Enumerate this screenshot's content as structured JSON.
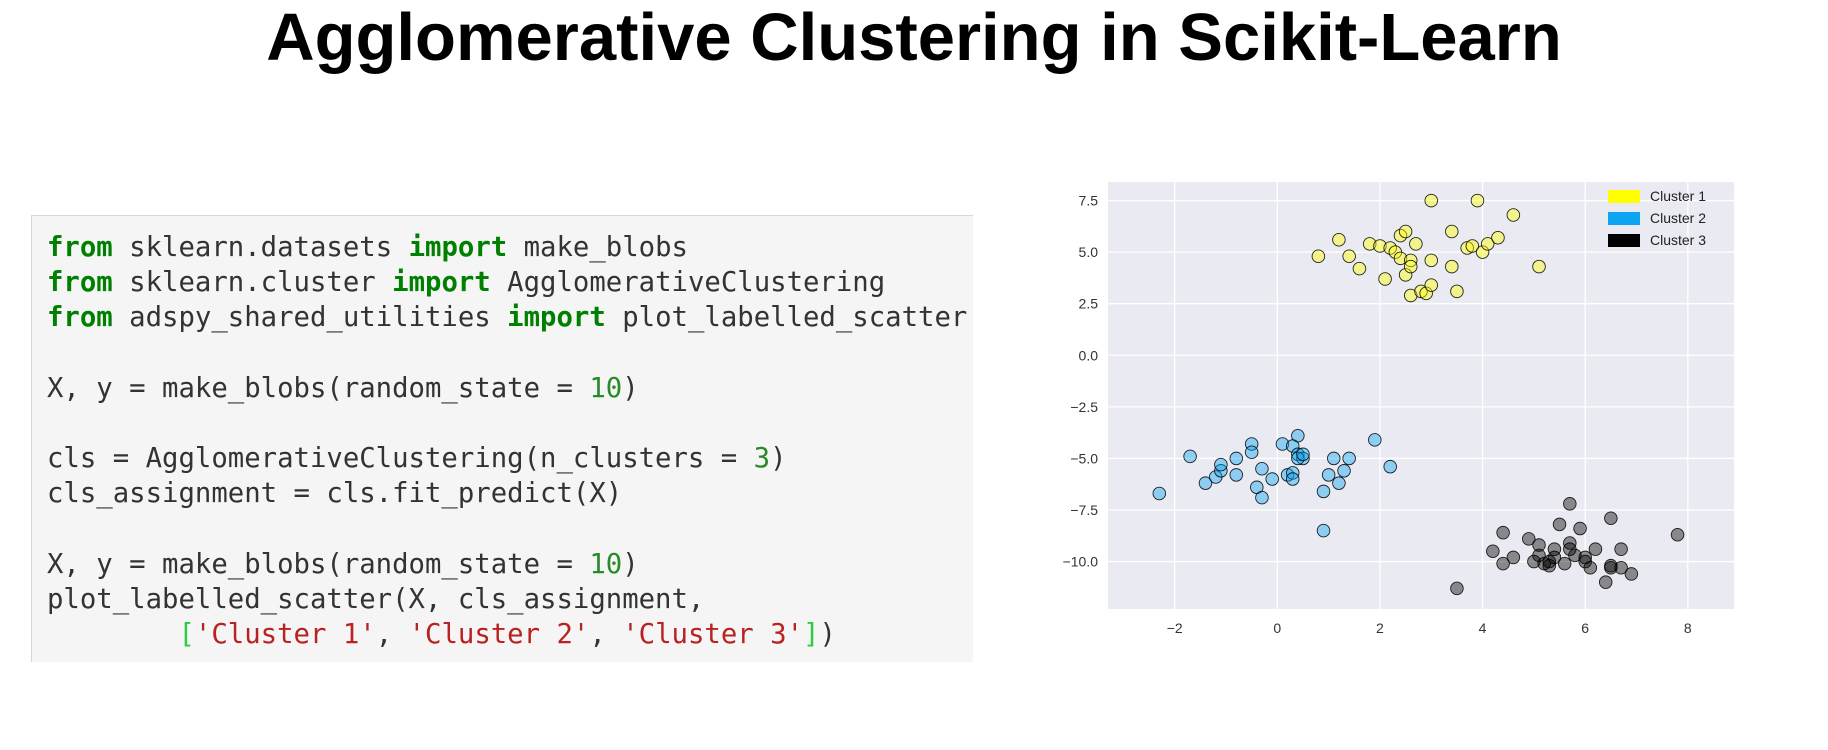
{
  "title": "Agglomerative Clustering in Scikit-Learn",
  "code_lines": [
    [
      {
        "t": "from",
        "c": "keyword"
      },
      {
        "t": " sklearn.datasets ",
        "c": "plain"
      },
      {
        "t": "import",
        "c": "keyword"
      },
      {
        "t": " make_blobs",
        "c": "plain"
      }
    ],
    [
      {
        "t": "from",
        "c": "keyword"
      },
      {
        "t": " sklearn.cluster ",
        "c": "plain"
      },
      {
        "t": "import",
        "c": "keyword"
      },
      {
        "t": " AgglomerativeClustering",
        "c": "plain"
      }
    ],
    [
      {
        "t": "from",
        "c": "keyword"
      },
      {
        "t": " adspy_shared_utilities ",
        "c": "plain"
      },
      {
        "t": "import",
        "c": "keyword"
      },
      {
        "t": " plot_labelled_scatter",
        "c": "plain"
      }
    ],
    [],
    [
      {
        "t": "X, y = make_blobs(random_state = ",
        "c": "plain"
      },
      {
        "t": "10",
        "c": "number"
      },
      {
        "t": ")",
        "c": "plain"
      }
    ],
    [],
    [
      {
        "t": "cls = AgglomerativeClustering(n_clusters = ",
        "c": "plain"
      },
      {
        "t": "3",
        "c": "number"
      },
      {
        "t": ")",
        "c": "plain"
      }
    ],
    [
      {
        "t": "cls_assignment = cls.fit_predict(X)",
        "c": "plain"
      }
    ],
    [],
    [
      {
        "t": "X, y = make_blobs(random_state = ",
        "c": "plain"
      },
      {
        "t": "10",
        "c": "number"
      },
      {
        "t": ")",
        "c": "plain"
      }
    ],
    [
      {
        "t": "plot_labelled_scatter(X, cls_assignment,",
        "c": "plain"
      }
    ],
    [
      {
        "t": "        ",
        "c": "plain"
      },
      {
        "t": "[",
        "c": "bracket"
      },
      {
        "t": "'Cluster 1'",
        "c": "string"
      },
      {
        "t": ", ",
        "c": "plain"
      },
      {
        "t": "'Cluster 2'",
        "c": "string"
      },
      {
        "t": ", ",
        "c": "plain"
      },
      {
        "t": "'Cluster 3'",
        "c": "string"
      },
      {
        "t": "]",
        "c": "bracket"
      },
      {
        "t": ")",
        "c": "plain"
      }
    ]
  ],
  "chart_data": {
    "type": "scatter",
    "xlim": [
      -3.3,
      8.9
    ],
    "ylim": [
      -12.3,
      8.4
    ],
    "xticks": [
      -2,
      0,
      2,
      4,
      6,
      8
    ],
    "xtick_labels": [
      "−2",
      "0",
      "2",
      "4",
      "6",
      "8"
    ],
    "yticks": [
      7.5,
      5.0,
      2.5,
      0.0,
      -2.5,
      -5.0,
      -7.5,
      -10.0
    ],
    "ytick_labels": [
      "7.5",
      "5.0",
      "2.5",
      "0.0",
      "−2.5",
      "−5.0",
      "−7.5",
      "−10.0"
    ],
    "grid": true,
    "legend_position": "top-right",
    "series": [
      {
        "name": "Cluster 1",
        "color": "#ffff00",
        "points": [
          [
            0.8,
            4.8
          ],
          [
            1.2,
            5.6
          ],
          [
            1.4,
            4.8
          ],
          [
            1.6,
            4.2
          ],
          [
            1.8,
            5.4
          ],
          [
            2.0,
            5.3
          ],
          [
            2.1,
            3.7
          ],
          [
            2.2,
            5.2
          ],
          [
            2.3,
            5.0
          ],
          [
            2.4,
            5.8
          ],
          [
            2.4,
            4.7
          ],
          [
            2.5,
            6.0
          ],
          [
            2.5,
            3.9
          ],
          [
            2.6,
            4.6
          ],
          [
            2.6,
            4.3
          ],
          [
            2.7,
            5.4
          ],
          [
            2.6,
            2.9
          ],
          [
            2.8,
            3.1
          ],
          [
            2.9,
            3.0
          ],
          [
            3.0,
            3.4
          ],
          [
            3.0,
            4.6
          ],
          [
            3.0,
            7.5
          ],
          [
            3.5,
            3.1
          ],
          [
            3.4,
            4.3
          ],
          [
            3.4,
            6.0
          ],
          [
            3.7,
            5.2
          ],
          [
            3.8,
            5.3
          ],
          [
            3.9,
            7.5
          ],
          [
            4.0,
            5.0
          ],
          [
            4.1,
            5.4
          ],
          [
            4.3,
            5.7
          ],
          [
            4.6,
            6.8
          ],
          [
            5.1,
            4.3
          ]
        ]
      },
      {
        "name": "Cluster 2",
        "color": "#0da5f2",
        "points": [
          [
            -2.3,
            -6.7
          ],
          [
            -1.7,
            -4.9
          ],
          [
            -1.4,
            -6.2
          ],
          [
            -1.2,
            -5.9
          ],
          [
            -1.1,
            -5.6
          ],
          [
            -1.1,
            -5.3
          ],
          [
            -0.8,
            -5.8
          ],
          [
            -0.8,
            -5.0
          ],
          [
            -0.5,
            -4.3
          ],
          [
            -0.5,
            -4.7
          ],
          [
            -0.4,
            -6.4
          ],
          [
            -0.3,
            -5.5
          ],
          [
            -0.3,
            -6.9
          ],
          [
            -0.1,
            -6.0
          ],
          [
            0.1,
            -4.3
          ],
          [
            0.2,
            -5.8
          ],
          [
            0.3,
            -5.7
          ],
          [
            0.3,
            -6.0
          ],
          [
            0.4,
            -3.9
          ],
          [
            0.3,
            -4.4
          ],
          [
            0.4,
            -4.8
          ],
          [
            0.5,
            -5.0
          ],
          [
            0.4,
            -5.0
          ],
          [
            0.5,
            -4.8
          ],
          [
            0.9,
            -6.6
          ],
          [
            1.0,
            -5.8
          ],
          [
            1.1,
            -5.0
          ],
          [
            1.2,
            -6.2
          ],
          [
            1.3,
            -5.6
          ],
          [
            1.4,
            -5.0
          ],
          [
            0.9,
            -8.5
          ],
          [
            1.9,
            -4.1
          ],
          [
            2.2,
            -5.4
          ]
        ]
      },
      {
        "name": "Cluster 3",
        "color": "#000000",
        "points": [
          [
            3.5,
            -11.3
          ],
          [
            4.2,
            -9.5
          ],
          [
            4.4,
            -8.6
          ],
          [
            4.4,
            -10.1
          ],
          [
            4.6,
            -9.8
          ],
          [
            4.9,
            -8.9
          ],
          [
            5.1,
            -9.2
          ],
          [
            5.1,
            -9.7
          ],
          [
            5.2,
            -10.1
          ],
          [
            5.3,
            -10.2
          ],
          [
            5.3,
            -10.0
          ],
          [
            5.4,
            -9.8
          ],
          [
            5.4,
            -9.4
          ],
          [
            5.5,
            -8.2
          ],
          [
            5.6,
            -10.1
          ],
          [
            5.7,
            -9.1
          ],
          [
            5.7,
            -9.4
          ],
          [
            5.7,
            -7.2
          ],
          [
            5.8,
            -9.7
          ],
          [
            5.9,
            -8.4
          ],
          [
            6.0,
            -9.8
          ],
          [
            6.0,
            -10.0
          ],
          [
            6.1,
            -10.3
          ],
          [
            6.2,
            -9.4
          ],
          [
            6.4,
            -11.0
          ],
          [
            6.5,
            -7.9
          ],
          [
            6.5,
            -10.3
          ],
          [
            6.5,
            -10.2
          ],
          [
            6.7,
            -9.4
          ],
          [
            6.7,
            -10.3
          ],
          [
            6.9,
            -10.6
          ],
          [
            7.8,
            -8.7
          ],
          [
            5.0,
            -10.0
          ]
        ]
      }
    ]
  }
}
